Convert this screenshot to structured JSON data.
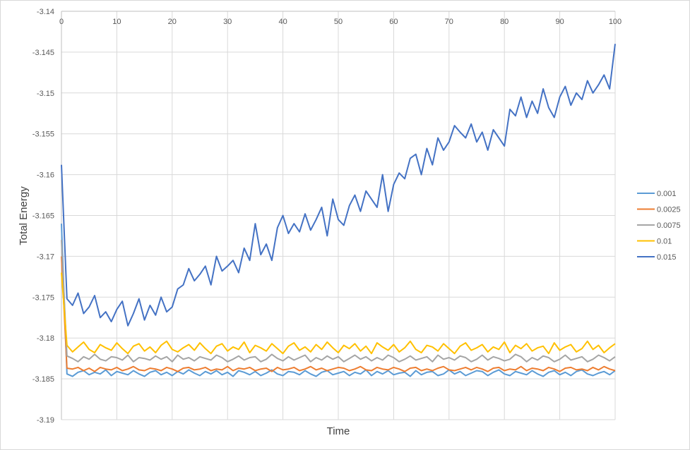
{
  "chart_data": {
    "type": "line",
    "title": "",
    "xlabel": "Time",
    "ylabel": "Total Energy",
    "xlim": [
      0,
      100
    ],
    "ylim": [
      -3.19,
      -3.14
    ],
    "x_ticks": [
      "0",
      "10",
      "20",
      "30",
      "40",
      "50",
      "60",
      "70",
      "80",
      "90",
      "100"
    ],
    "y_ticks": [
      "-3.14",
      "-3.145",
      "-3.15",
      "-3.155",
      "-3.16",
      "-3.165",
      "-3.17",
      "-3.175",
      "-3.18",
      "-3.185",
      "-3.19"
    ],
    "x_tick_values": [
      0,
      10,
      20,
      30,
      40,
      50,
      60,
      70,
      80,
      90,
      100
    ],
    "y_tick_values": [
      -3.14,
      -3.145,
      -3.15,
      -3.155,
      -3.16,
      -3.165,
      -3.17,
      -3.175,
      -3.18,
      -3.185,
      -3.19
    ],
    "grid": true,
    "x_axis_position": "top",
    "legend": "right",
    "x": [
      0,
      1,
      2,
      3,
      4,
      5,
      6,
      7,
      8,
      9,
      10,
      11,
      12,
      13,
      14,
      15,
      16,
      17,
      18,
      19,
      20,
      21,
      22,
      23,
      24,
      25,
      26,
      27,
      28,
      29,
      30,
      31,
      32,
      33,
      34,
      35,
      36,
      37,
      38,
      39,
      40,
      41,
      42,
      43,
      44,
      45,
      46,
      47,
      48,
      49,
      50,
      51,
      52,
      53,
      54,
      55,
      56,
      57,
      58,
      59,
      60,
      61,
      62,
      63,
      64,
      65,
      66,
      67,
      68,
      69,
      70,
      71,
      72,
      73,
      74,
      75,
      76,
      77,
      78,
      79,
      80,
      81,
      82,
      83,
      84,
      85,
      86,
      87,
      88,
      89,
      90,
      91,
      92,
      93,
      94,
      95,
      96,
      97,
      98,
      99,
      100
    ],
    "series": [
      {
        "name": "0.001",
        "color": "#5B9BD5",
        "values": [
          -3.166,
          -3.1844,
          -3.1847,
          -3.1842,
          -3.184,
          -3.1845,
          -3.1842,
          -3.1844,
          -3.1839,
          -3.1846,
          -3.1841,
          -3.1843,
          -3.1845,
          -3.184,
          -3.1844,
          -3.1847,
          -3.1842,
          -3.184,
          -3.1845,
          -3.1842,
          -3.1846,
          -3.1841,
          -3.1844,
          -3.1839,
          -3.1843,
          -3.1846,
          -3.1841,
          -3.1844,
          -3.184,
          -3.1845,
          -3.1842,
          -3.1847,
          -3.184,
          -3.1842,
          -3.1845,
          -3.1841,
          -3.1846,
          -3.1843,
          -3.1839,
          -3.1844,
          -3.1846,
          -3.1841,
          -3.1842,
          -3.1845,
          -3.184,
          -3.1844,
          -3.1847,
          -3.1842,
          -3.184,
          -3.1845,
          -3.1843,
          -3.1841,
          -3.1846,
          -3.1842,
          -3.1844,
          -3.1839,
          -3.1846,
          -3.1841,
          -3.1844,
          -3.184,
          -3.1845,
          -3.1843,
          -3.1842,
          -3.1847,
          -3.184,
          -3.1845,
          -3.1842,
          -3.1841,
          -3.1846,
          -3.1844,
          -3.1839,
          -3.1844,
          -3.1841,
          -3.1846,
          -3.1843,
          -3.184,
          -3.1841,
          -3.1846,
          -3.1842,
          -3.1839,
          -3.1844,
          -3.1846,
          -3.1841,
          -3.1843,
          -3.1845,
          -3.184,
          -3.1844,
          -3.1847,
          -3.1842,
          -3.184,
          -3.1845,
          -3.1842,
          -3.1846,
          -3.1841,
          -3.1839,
          -3.1844,
          -3.1846,
          -3.1843,
          -3.1841,
          -3.1845,
          -3.184
        ]
      },
      {
        "name": "0.0025",
        "color": "#ED7D31",
        "values": [
          -3.17,
          -3.1837,
          -3.1838,
          -3.1836,
          -3.184,
          -3.1837,
          -3.1841,
          -3.1836,
          -3.1838,
          -3.1839,
          -3.1836,
          -3.184,
          -3.1838,
          -3.1835,
          -3.1839,
          -3.184,
          -3.1837,
          -3.1838,
          -3.184,
          -3.1836,
          -3.1838,
          -3.1841,
          -3.1837,
          -3.1836,
          -3.1839,
          -3.1838,
          -3.1836,
          -3.184,
          -3.1838,
          -3.1839,
          -3.1835,
          -3.184,
          -3.1837,
          -3.1838,
          -3.1836,
          -3.184,
          -3.1838,
          -3.1837,
          -3.1841,
          -3.1836,
          -3.1839,
          -3.1838,
          -3.1836,
          -3.184,
          -3.1838,
          -3.1835,
          -3.1839,
          -3.1837,
          -3.184,
          -3.1838,
          -3.1836,
          -3.1837,
          -3.184,
          -3.1838,
          -3.1835,
          -3.1839,
          -3.184,
          -3.1836,
          -3.1838,
          -3.1839,
          -3.1836,
          -3.1838,
          -3.1841,
          -3.1837,
          -3.1836,
          -3.184,
          -3.1838,
          -3.184,
          -3.1837,
          -3.1835,
          -3.1839,
          -3.184,
          -3.1838,
          -3.1836,
          -3.1839,
          -3.1836,
          -3.1838,
          -3.1841,
          -3.1837,
          -3.1836,
          -3.184,
          -3.1838,
          -3.1839,
          -3.1835,
          -3.184,
          -3.1837,
          -3.1838,
          -3.184,
          -3.1836,
          -3.1838,
          -3.1841,
          -3.1837,
          -3.1836,
          -3.1839,
          -3.1838,
          -3.184,
          -3.1836,
          -3.1839,
          -3.1835,
          -3.1838,
          -3.184
        ]
      },
      {
        "name": "0.0075",
        "color": "#A5A5A5",
        "values": [
          -3.168,
          -3.1822,
          -3.1825,
          -3.1829,
          -3.1823,
          -3.1826,
          -3.182,
          -3.1826,
          -3.1828,
          -3.1823,
          -3.1824,
          -3.1827,
          -3.1821,
          -3.1829,
          -3.1824,
          -3.1825,
          -3.1827,
          -3.1822,
          -3.1826,
          -3.1823,
          -3.1829,
          -3.1821,
          -3.1826,
          -3.1824,
          -3.1828,
          -3.1823,
          -3.1825,
          -3.1827,
          -3.1821,
          -3.1824,
          -3.1829,
          -3.1826,
          -3.1822,
          -3.1827,
          -3.1824,
          -3.1823,
          -3.1829,
          -3.1826,
          -3.182,
          -3.1825,
          -3.1828,
          -3.1823,
          -3.1827,
          -3.1824,
          -3.1821,
          -3.1829,
          -3.1824,
          -3.1827,
          -3.1822,
          -3.1826,
          -3.1823,
          -3.1829,
          -3.1825,
          -3.1821,
          -3.1826,
          -3.1823,
          -3.1828,
          -3.1824,
          -3.1827,
          -3.1821,
          -3.1824,
          -3.1829,
          -3.1826,
          -3.1822,
          -3.1827,
          -3.1825,
          -3.1823,
          -3.1829,
          -3.1821,
          -3.1826,
          -3.1824,
          -3.1827,
          -3.1822,
          -3.1824,
          -3.1829,
          -3.1826,
          -3.1821,
          -3.1827,
          -3.1823,
          -3.1825,
          -3.1828,
          -3.1826,
          -3.182,
          -3.1823,
          -3.1829,
          -3.1824,
          -3.1827,
          -3.1822,
          -3.1824,
          -3.1829,
          -3.1826,
          -3.1821,
          -3.1827,
          -3.1825,
          -3.1823,
          -3.1829,
          -3.1826,
          -3.1821,
          -3.1824,
          -3.1828,
          -3.1823
        ]
      },
      {
        "name": "0.01",
        "color": "#FFC000",
        "values": [
          -3.172,
          -3.1809,
          -3.1817,
          -3.1811,
          -3.1805,
          -3.1814,
          -3.1818,
          -3.1808,
          -3.1812,
          -3.1815,
          -3.1806,
          -3.1813,
          -3.1819,
          -3.181,
          -3.1807,
          -3.1816,
          -3.1811,
          -3.1818,
          -3.1809,
          -3.1804,
          -3.1814,
          -3.1817,
          -3.1812,
          -3.1808,
          -3.1815,
          -3.1806,
          -3.1813,
          -3.1819,
          -3.181,
          -3.1807,
          -3.1816,
          -3.1811,
          -3.1814,
          -3.1805,
          -3.1818,
          -3.1809,
          -3.1812,
          -3.1816,
          -3.1807,
          -3.1813,
          -3.1819,
          -3.181,
          -3.1806,
          -3.1815,
          -3.1811,
          -3.1817,
          -3.1808,
          -3.1814,
          -3.1805,
          -3.1812,
          -3.1818,
          -3.1809,
          -3.1813,
          -3.1807,
          -3.1816,
          -3.181,
          -3.1819,
          -3.1806,
          -3.1811,
          -3.1815,
          -3.1808,
          -3.1817,
          -3.1812,
          -3.1804,
          -3.1814,
          -3.1818,
          -3.1809,
          -3.1811,
          -3.1816,
          -3.1807,
          -3.1813,
          -3.1819,
          -3.181,
          -3.1806,
          -3.1815,
          -3.1812,
          -3.1808,
          -3.1817,
          -3.1811,
          -3.1814,
          -3.1805,
          -3.1818,
          -3.1809,
          -3.1813,
          -3.1807,
          -3.1816,
          -3.1812,
          -3.181,
          -3.1819,
          -3.1806,
          -3.1815,
          -3.1811,
          -3.1808,
          -3.1817,
          -3.1813,
          -3.1804,
          -3.1814,
          -3.1809,
          -3.1818,
          -3.1812,
          -3.1807
        ]
      },
      {
        "name": "0.015",
        "color": "#4472C4",
        "values": [
          -3.1588,
          -3.1752,
          -3.176,
          -3.1745,
          -3.177,
          -3.1762,
          -3.1748,
          -3.1775,
          -3.1768,
          -3.178,
          -3.1765,
          -3.1755,
          -3.1785,
          -3.177,
          -3.1752,
          -3.1778,
          -3.176,
          -3.1772,
          -3.175,
          -3.1768,
          -3.1762,
          -3.174,
          -3.1735,
          -3.1715,
          -3.173,
          -3.1722,
          -3.1712,
          -3.1735,
          -3.17,
          -3.1718,
          -3.1712,
          -3.1705,
          -3.172,
          -3.169,
          -3.1705,
          -3.166,
          -3.1698,
          -3.1685,
          -3.1705,
          -3.1665,
          -3.165,
          -3.1672,
          -3.166,
          -3.167,
          -3.1648,
          -3.1668,
          -3.1655,
          -3.164,
          -3.1675,
          -3.163,
          -3.1655,
          -3.1662,
          -3.1638,
          -3.1625,
          -3.1645,
          -3.162,
          -3.163,
          -3.164,
          -3.16,
          -3.1645,
          -3.1612,
          -3.1598,
          -3.1605,
          -3.158,
          -3.1575,
          -3.16,
          -3.1568,
          -3.1588,
          -3.1555,
          -3.157,
          -3.156,
          -3.154,
          -3.1548,
          -3.1555,
          -3.1538,
          -3.156,
          -3.1548,
          -3.157,
          -3.1545,
          -3.1555,
          -3.1565,
          -3.152,
          -3.1528,
          -3.1505,
          -3.153,
          -3.151,
          -3.1525,
          -3.1495,
          -3.1518,
          -3.153,
          -3.1505,
          -3.1492,
          -3.1515,
          -3.15,
          -3.1508,
          -3.1485,
          -3.15,
          -3.149,
          -3.1478,
          -3.1495,
          -3.144
        ]
      }
    ]
  }
}
